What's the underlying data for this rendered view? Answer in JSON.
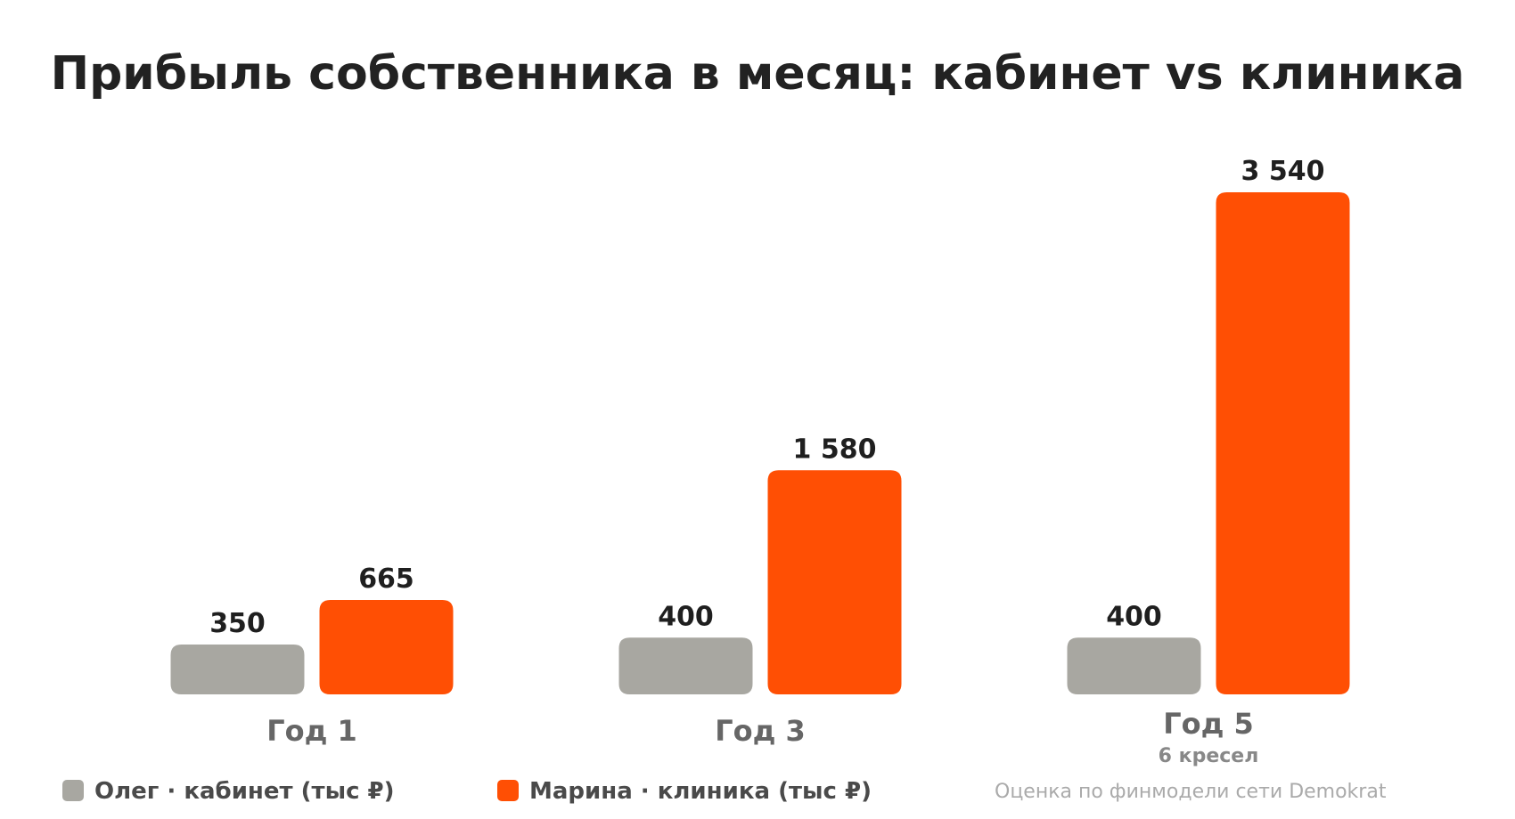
{
  "chart_data": {
    "type": "bar",
    "title": "Прибыль собственника в месяц: кабинет vs клиника",
    "categories": [
      "Год 1",
      "Год 3",
      "Год 5"
    ],
    "category_sublabels": [
      "",
      "",
      "6 кресел"
    ],
    "series": [
      {
        "name": "Олег · кабинет (тыс ₽)",
        "color": "#a8a7a1",
        "values": [
          350,
          400,
          400
        ],
        "value_labels": [
          "350",
          "400",
          "400"
        ]
      },
      {
        "name": "Марина · клиника (тыс ₽)",
        "color": "#ff4f04",
        "values": [
          665,
          1580,
          3540
        ],
        "value_labels": [
          "665",
          "1 580",
          "3 540"
        ]
      }
    ],
    "ylim": [
      0,
      3540
    ],
    "grid": false,
    "legend_position": "bottom-left",
    "note": "Оценка по финмодели сети Demokrat"
  }
}
